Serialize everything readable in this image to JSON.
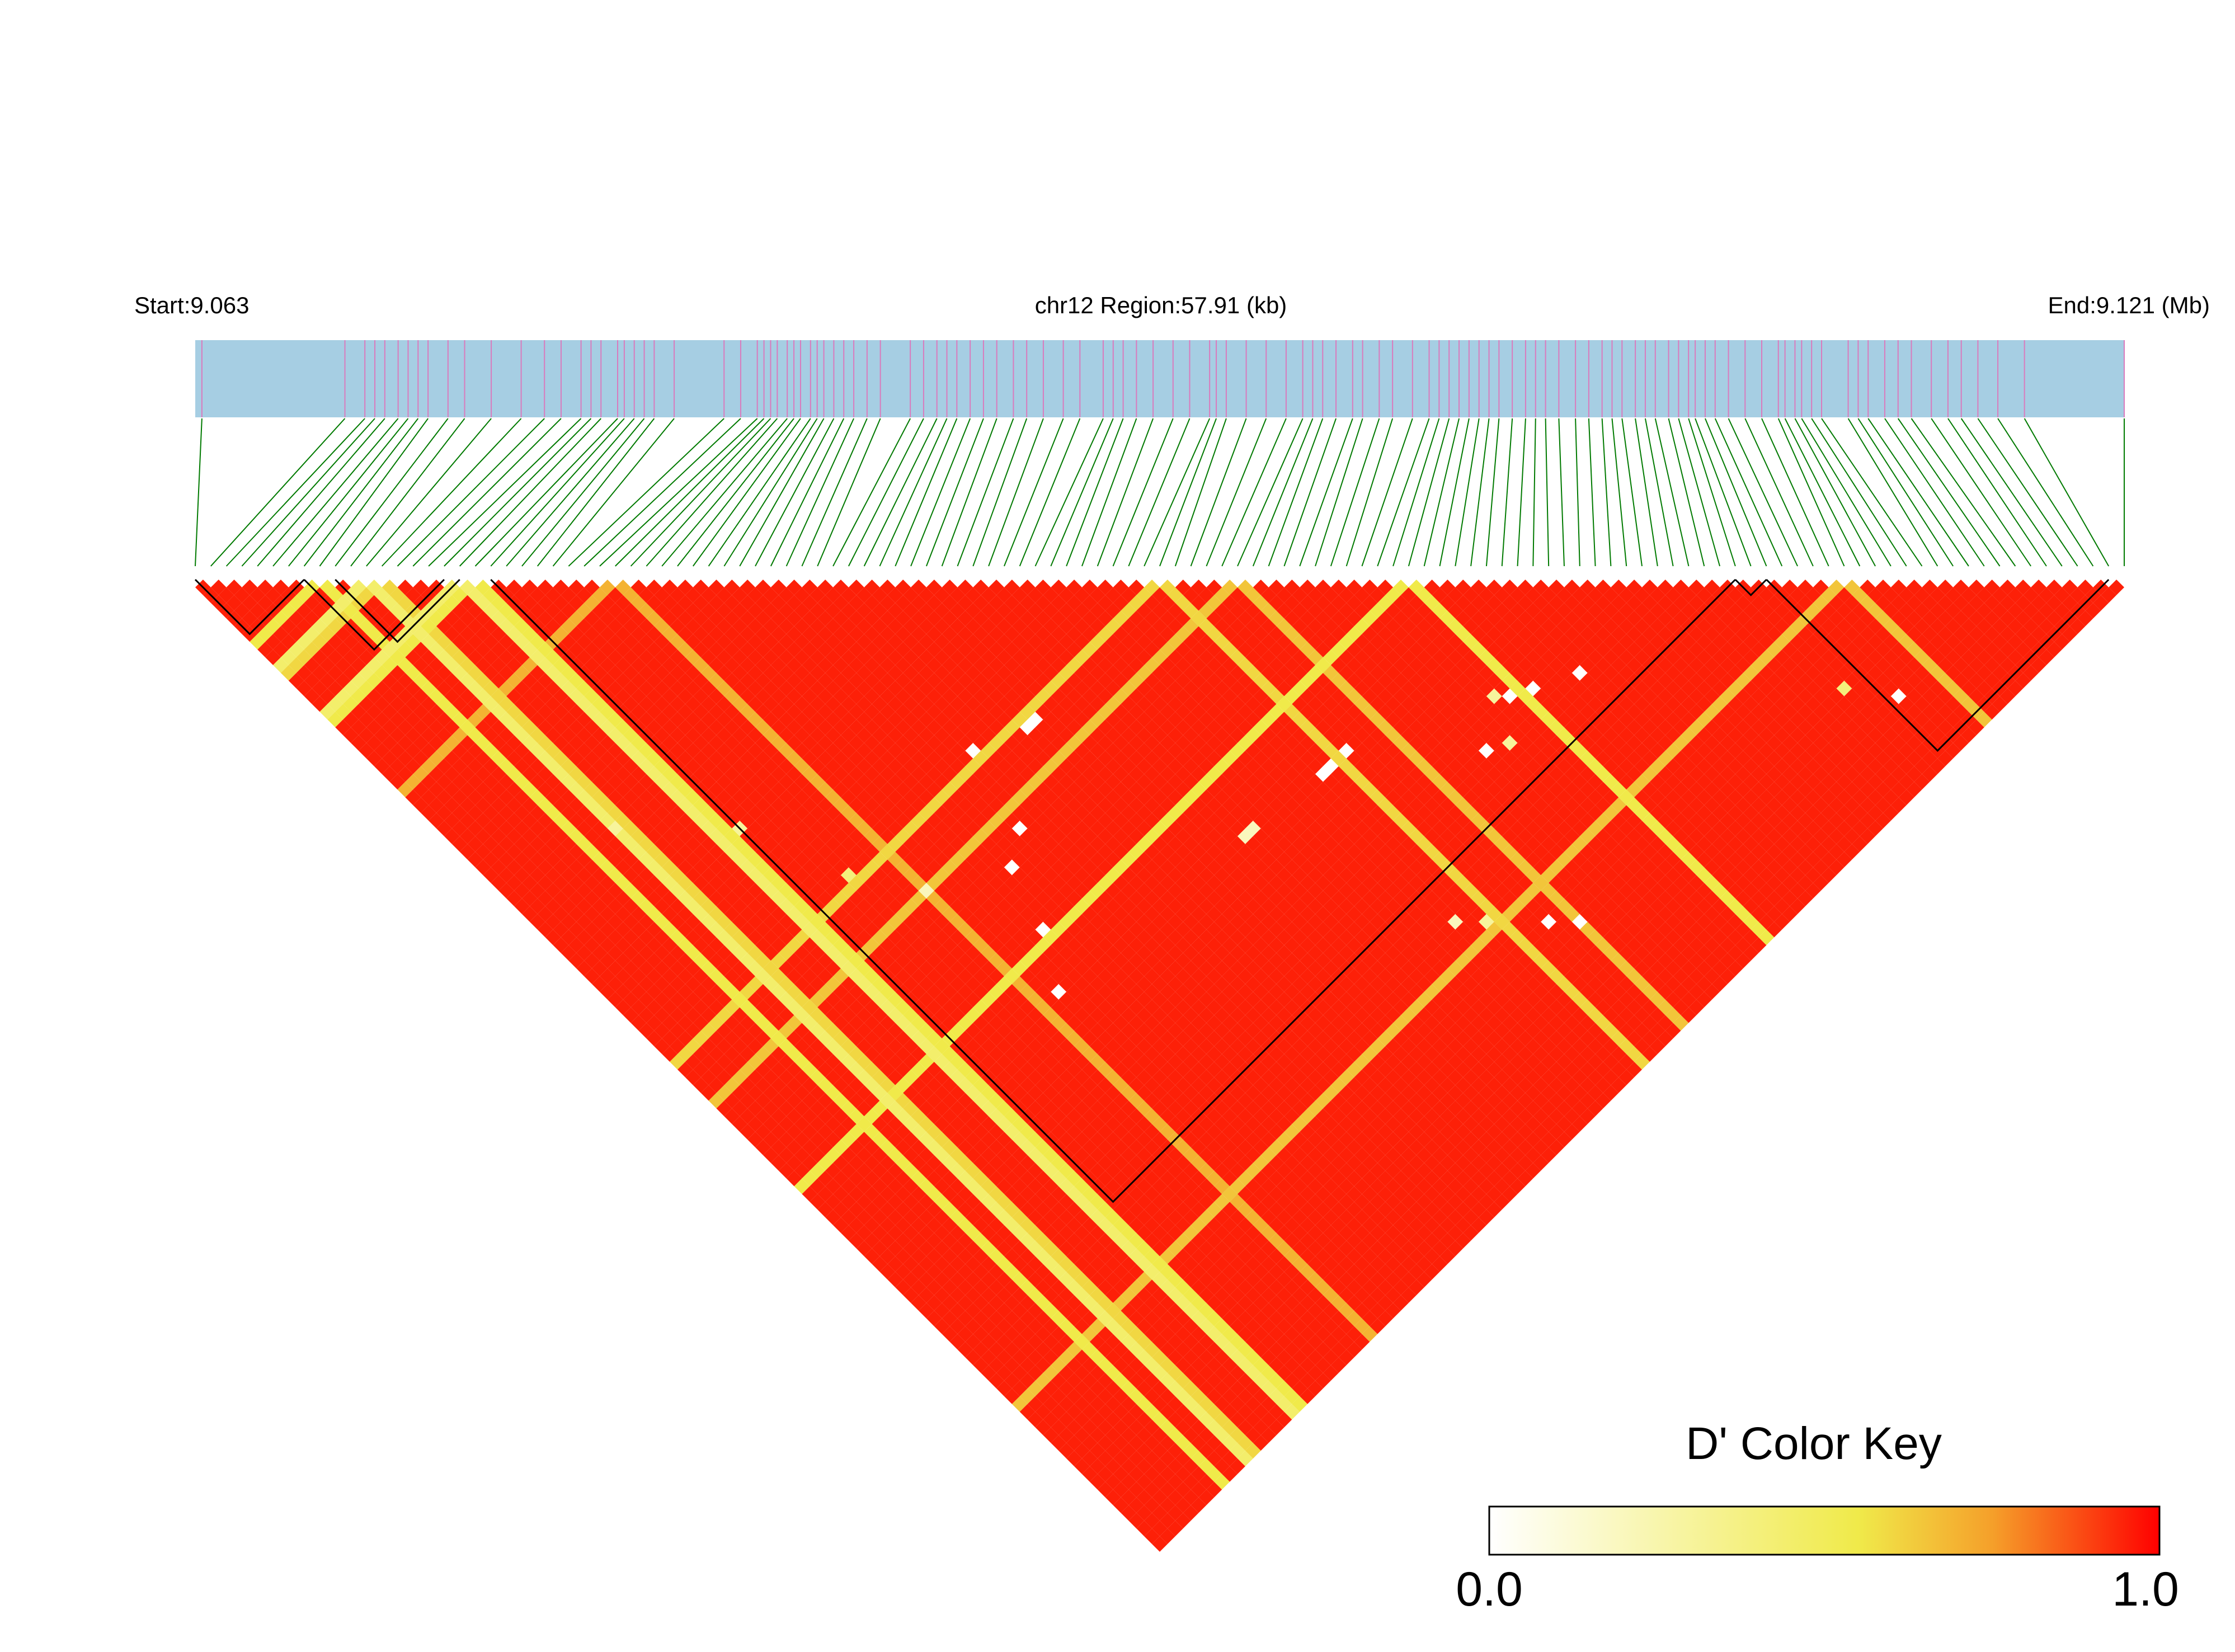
{
  "chart_data": {
    "type": "heatmap",
    "subtype": "linkage-disequilibrium-triangle",
    "measure": "D'",
    "header": {
      "start_label": "Start:9.063",
      "region_label": "chr12 Region:57.91 (kb)",
      "end_label": "End:9.121 (Mb)"
    },
    "chromosome": "chr12",
    "region_start_mb": 9.063,
    "region_end_mb": 9.121,
    "region_length_kb": 57.91,
    "snp_count": 125,
    "snp_positions_mb": [
      9.0632,
      9.0675,
      9.0681,
      9.0684,
      9.0687,
      9.0691,
      9.0694,
      9.0697,
      9.07,
      9.0706,
      9.0711,
      9.0719,
      9.0728,
      9.0735,
      9.074,
      9.0746,
      9.0749,
      9.0752,
      9.0757,
      9.0759,
      9.0762,
      9.0765,
      9.0768,
      9.0774,
      9.0789,
      9.0794,
      9.0799,
      9.0801,
      9.0803,
      9.0805,
      9.0808,
      9.081,
      9.0812,
      9.0815,
      9.0817,
      9.0819,
      9.0822,
      9.0825,
      9.0828,
      9.0832,
      9.0836,
      9.0845,
      9.0849,
      9.0853,
      9.0856,
      9.0859,
      9.0863,
      9.0867,
      9.0871,
      9.0876,
      9.088,
      9.0885,
      9.0891,
      9.0896,
      9.0903,
      9.0906,
      9.0909,
      9.0913,
      9.0918,
      9.0924,
      9.0929,
      9.0935,
      9.0937,
      9.094,
      9.0946,
      9.0952,
      9.0958,
      9.0963,
      9.0966,
      9.0969,
      9.0973,
      9.0978,
      9.0981,
      9.0986,
      9.099,
      9.0996,
      9.1001,
      9.1004,
      9.1007,
      9.101,
      9.1013,
      9.1016,
      9.1019,
      9.1022,
      9.1026,
      9.103,
      9.1033,
      9.1036,
      9.104,
      9.1045,
      9.1049,
      9.1053,
      9.1056,
      9.1059,
      9.1063,
      9.1066,
      9.1069,
      9.1073,
      9.1076,
      9.1079,
      9.1081,
      9.1084,
      9.1087,
      9.1091,
      9.1096,
      9.1101,
      9.1106,
      9.1108,
      9.1111,
      9.1113,
      9.1116,
      9.1119,
      9.1127,
      9.113,
      9.1133,
      9.1138,
      9.1142,
      9.1146,
      9.1152,
      9.1157,
      9.1161,
      9.1166,
      9.1172,
      9.118,
      9.121
    ],
    "haplotype_blocks": [
      {
        "first_snp": 1,
        "last_snp": 8
      },
      {
        "first_snp": 8,
        "last_snp": 17
      },
      {
        "first_snp": 10,
        "last_snp": 18
      },
      {
        "first_snp": 20,
        "last_snp": 100
      },
      {
        "first_snp": 100,
        "last_snp": 102
      },
      {
        "first_snp": 102,
        "last_snp": 124
      }
    ],
    "low_d_prime_snps": [
      {
        "snp": 9,
        "d_prime": 0.55
      },
      {
        "snp": 12,
        "d_prime": 0.45
      },
      {
        "snp": 13,
        "d_prime": 0.6
      },
      {
        "snp": 18,
        "d_prime": 0.45
      },
      {
        "snp": 19,
        "d_prime": 0.55
      },
      {
        "snp": 28,
        "d_prime": 0.7
      },
      {
        "snp": 63,
        "d_prime": 0.6
      },
      {
        "snp": 68,
        "d_prime": 0.65
      },
      {
        "snp": 79,
        "d_prime": 0.55
      },
      {
        "snp": 107,
        "d_prime": 0.65
      }
    ],
    "low_d_prime_pairs": [
      {
        "i": 61,
        "j": 86,
        "d_prime": 0.0
      },
      {
        "i": 62,
        "j": 86,
        "d_prime": 0.0
      },
      {
        "i": 64,
        "j": 86,
        "d_prime": 0.0
      },
      {
        "i": 52,
        "j": 85,
        "d_prime": 0.2
      },
      {
        "i": 53,
        "j": 85,
        "d_prime": 0.2
      },
      {
        "i": 78,
        "j": 93,
        "d_prime": 0.0
      },
      {
        "i": 80,
        "j": 94,
        "d_prime": 0.0
      },
      {
        "i": 77,
        "j": 92,
        "d_prime": 0.3
      },
      {
        "i": 73,
        "j": 95,
        "d_prime": 0.0
      },
      {
        "i": 75,
        "j": 96,
        "d_prime": 0.3
      },
      {
        "i": 84,
        "j": 96,
        "d_prime": 0.0
      },
      {
        "i": 45,
        "j": 64,
        "d_prime": 0.0
      },
      {
        "i": 46,
        "j": 64,
        "d_prime": 0.0
      },
      {
        "i": 40,
        "j": 62,
        "d_prime": 0.0
      },
      {
        "i": 38,
        "j": 70,
        "d_prime": 0.0
      },
      {
        "i": 35,
        "j": 72,
        "d_prime": 0.0
      },
      {
        "i": 33,
        "j": 78,
        "d_prime": 0.0
      },
      {
        "i": 30,
        "j": 83,
        "d_prime": 0.0
      },
      {
        "i": 60,
        "j": 104,
        "d_prime": 0.2
      },
      {
        "i": 62,
        "j": 106,
        "d_prime": 0.3
      },
      {
        "i": 66,
        "j": 110,
        "d_prime": 0.0
      },
      {
        "i": 68,
        "j": 112,
        "d_prime": 0.0
      },
      {
        "i": 100,
        "j": 114,
        "d_prime": 0.4
      },
      {
        "i": 103,
        "j": 118,
        "d_prime": 0.0
      },
      {
        "i": 12,
        "j": 44,
        "d_prime": 0.3
      },
      {
        "i": 20,
        "j": 52,
        "d_prime": 0.3
      },
      {
        "i": 24,
        "j": 62,
        "d_prime": 0.4
      },
      {
        "i": 28,
        "j": 68,
        "d_prime": 0.2
      }
    ],
    "default_d_prime": 0.95,
    "color_key": {
      "title": "D' Color Key",
      "min_label": "0.0",
      "max_label": "1.0",
      "min": 0.0,
      "max": 1.0,
      "stops": [
        "#ffffff",
        "#f0ea4a",
        "#f5a02a",
        "#ff0000"
      ]
    },
    "colors": {
      "track": "#a6cee3",
      "snp_tick": "#d97bbd",
      "connector": "#007a00",
      "block_outline": "#000000"
    }
  }
}
